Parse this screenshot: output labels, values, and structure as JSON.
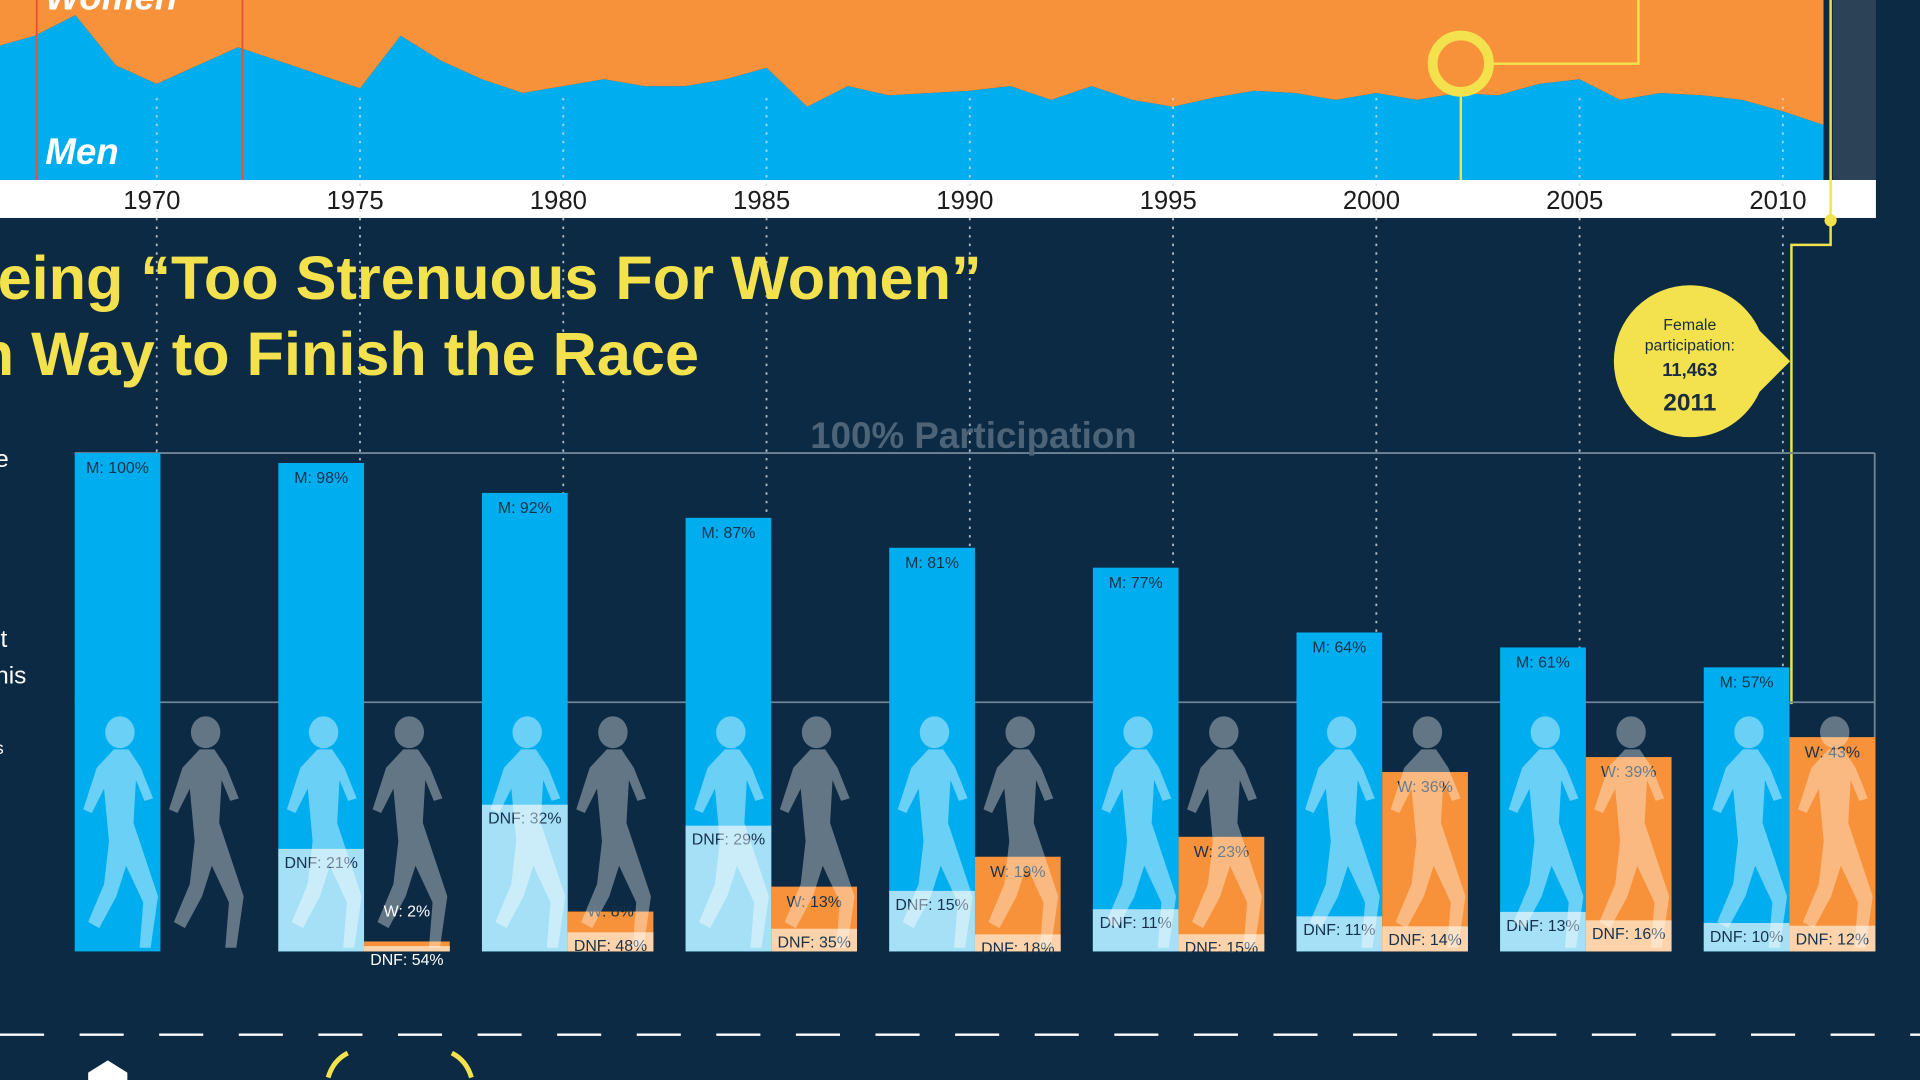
{
  "chart_data": [
    {
      "type": "area",
      "x": [
        1966,
        1967,
        1968,
        1969,
        1970,
        1971,
        1972,
        1973,
        1974,
        1975,
        1976,
        1977,
        1978,
        1979,
        1980,
        1981,
        1982,
        1983,
        1984,
        1985,
        1986,
        1987,
        1988,
        1989,
        1990,
        1991,
        1992,
        1993,
        1994,
        1995,
        1996,
        1997,
        1998,
        1999,
        2000,
        2001,
        2002,
        2003,
        2004,
        2005,
        2006,
        2007,
        2008,
        2009,
        2010,
        2011
      ],
      "series": [
        {
          "name": "Men",
          "color": "#00aeef",
          "values": [
            58,
            63,
            72,
            50,
            42,
            50,
            58,
            52,
            46,
            40,
            63,
            52,
            44,
            38,
            41,
            44,
            41,
            41,
            44,
            49,
            32,
            41,
            37,
            38,
            39,
            41,
            35,
            41,
            35,
            32,
            36,
            39,
            38,
            35,
            38,
            35,
            38,
            37,
            42,
            44,
            35,
            38,
            37,
            35,
            30,
            24
          ]
        },
        {
          "name": "Women",
          "color": "#f7923a",
          "values": [
            42,
            37,
            28,
            50,
            58,
            50,
            42,
            48,
            54,
            60,
            37,
            48,
            56,
            62,
            59,
            56,
            59,
            59,
            56,
            51,
            68,
            59,
            63,
            62,
            61,
            59,
            65,
            59,
            65,
            68,
            64,
            61,
            62,
            65,
            62,
            65,
            62,
            63,
            58,
            56,
            65,
            62,
            63,
            65,
            70,
            76
          ]
        }
      ],
      "xticks": [
        1970,
        1975,
        1980,
        1985,
        1990,
        1995,
        2000,
        2005,
        2010
      ],
      "ylim": [
        0,
        100
      ]
    },
    {
      "type": "bar",
      "title": "eing “Too Strenuous For Women”",
      "subtitle": "n Way to Finish the Race",
      "reference_label": "100% Participation",
      "gridlines": [
        50,
        100
      ],
      "ylim": [
        0,
        100
      ],
      "side_text": [
        "e",
        "it",
        "his",
        "s"
      ],
      "series": [
        {
          "color": "#00aeef",
          "dnf_color": "#a6e0f7",
          "values": [
            100,
            98,
            92,
            87,
            81,
            77,
            64,
            61,
            57
          ],
          "value_labels": [
            "M: 100%",
            "M: 98%",
            "M: 92%",
            "M: 87%",
            "M: 81%",
            "M: 77%",
            "M: 64%",
            "M: 61%",
            "M: 57%"
          ],
          "dnf": [
            null,
            21,
            32,
            29,
            15,
            11,
            11,
            13,
            10
          ],
          "dnf_labels": [
            null,
            "DNF: 21%",
            "DNF: 32%",
            "DNF: 29%",
            "DNF: 15%",
            "DNF: 11%",
            "DNF: 11%",
            "DNF: 13%",
            "DNF: 10%"
          ]
        },
        {
          "color": "#f7923a",
          "dnf_color": "#fcd3aa",
          "values": [
            null,
            2,
            8,
            13,
            19,
            23,
            36,
            39,
            43
          ],
          "value_labels": [
            null,
            "W: 2%",
            "W: 8%",
            "W: 13%",
            "W: 19%",
            "W: 23%",
            "W: 36%",
            "W: 39%",
            "W: 43%"
          ],
          "dnf": [
            null,
            54,
            48,
            35,
            18,
            15,
            14,
            16,
            12
          ],
          "dnf_labels": [
            null,
            "DNF: 54%",
            "DNF: 48%",
            "DNF: 35%",
            "DNF: 18%",
            "DNF: 15%",
            "DNF: 14%",
            "DNF: 16%",
            "DNF: 12%"
          ]
        }
      ],
      "annotation": {
        "lines": [
          "Female",
          "participation:"
        ],
        "participants": {
          "value": 11463,
          "label": "11,463"
        },
        "year": 2011
      }
    }
  ]
}
